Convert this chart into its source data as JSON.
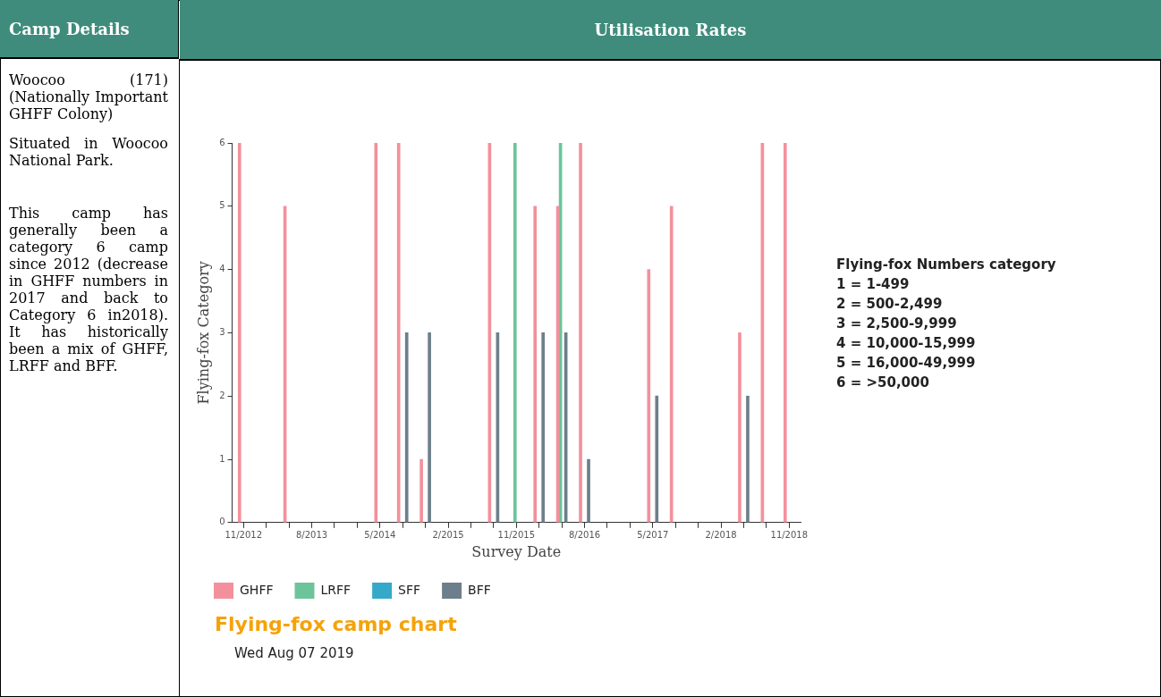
{
  "chart_data": {
    "type": "bar",
    "title": "Flying-fox camp chart",
    "subtitle": "Wed Aug 07 2019",
    "xlabel": "Survey Date",
    "ylabel": "Flying-fox Category",
    "categories": [
      "11/2012",
      null,
      null,
      "8/2013",
      null,
      null,
      "5/2014",
      null,
      null,
      "2/2015",
      null,
      null,
      "11/2015",
      null,
      null,
      "8/2016",
      null,
      null,
      "5/2017",
      null,
      null,
      "2/2018",
      null,
      null,
      "11/2018"
    ],
    "series": [
      {
        "name": "GHFF",
        "color": "#f4909c",
        "values": [
          6,
          null,
          5,
          null,
          null,
          null,
          6,
          6,
          1,
          null,
          null,
          6,
          null,
          5,
          5,
          6,
          null,
          null,
          4,
          5,
          null,
          null,
          3,
          6,
          6
        ]
      },
      {
        "name": "LRFF",
        "color": "#6cc49a",
        "values": [
          null,
          null,
          null,
          null,
          null,
          null,
          null,
          null,
          null,
          null,
          null,
          null,
          6,
          null,
          6,
          null,
          null,
          null,
          null,
          null,
          null,
          null,
          null,
          null,
          null
        ]
      },
      {
        "name": "SFF",
        "color": "#35a9c9",
        "values": [
          null,
          null,
          null,
          null,
          null,
          null,
          null,
          null,
          null,
          null,
          null,
          null,
          null,
          null,
          null,
          null,
          null,
          null,
          null,
          null,
          null,
          null,
          null,
          null,
          null
        ]
      },
      {
        "name": "BFF",
        "color": "#6d7f8a",
        "values": [
          null,
          null,
          null,
          null,
          null,
          null,
          null,
          3,
          3,
          null,
          null,
          3,
          null,
          3,
          3,
          1,
          null,
          null,
          2,
          null,
          null,
          null,
          2,
          null,
          null
        ]
      }
    ],
    "ylim": [
      0,
      6
    ],
    "yticks": [
      0,
      1,
      2,
      3,
      4,
      5,
      6
    ],
    "grid": false,
    "legend": "bottom",
    "annotations": [
      "Camp Details",
      "Utilisation Rates",
      "Woocoo (171) (Nationally Important GHFF Colony)",
      "Situated in Woocoo National Park.",
      "This camp has generally been a category 6 camp since 2012 (decrease in GHFF numbers in 2017 and back to Category 6 in2018). It has historically been a mix of GHFF, LRFF and BFF.",
      "Flying-fox Numbers category",
      "1 = 1-499",
      "2 = 500-2,499",
      "3 = 2,500-9,999",
      "4 = 10,000-15,999",
      "5 = 16,000-49,999",
      "6 = >50,000"
    ]
  }
}
